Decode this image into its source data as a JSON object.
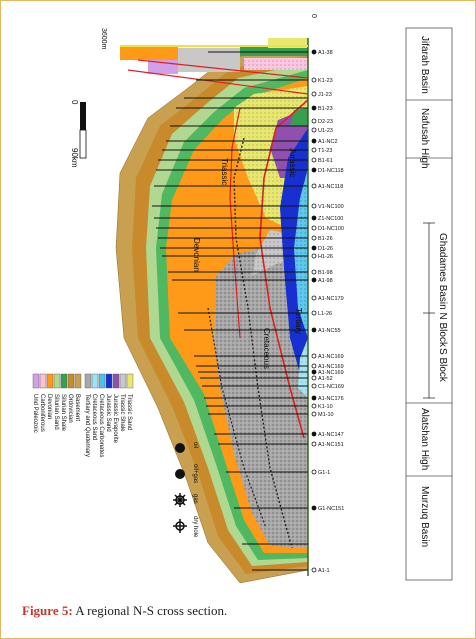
{
  "caption": {
    "label": "Figure 5:",
    "text": "A regional N-S cross section."
  },
  "regions": [
    {
      "name": "Jifarah Basin"
    },
    {
      "name": "Nafusah High"
    },
    {
      "name": "Ghadames Basin N Block"
    },
    {
      "name": "S Block"
    },
    {
      "name": "Alatshan High"
    },
    {
      "name": "Murzuq Basin"
    }
  ],
  "legend": {
    "left_column": [
      {
        "label": "Basement",
        "color": "#c8a050"
      },
      {
        "label": "Ordovician",
        "color": "#c88a2a"
      },
      {
        "label": "Silurian Shale",
        "color": "#36a050"
      },
      {
        "label": "Silurian Sand",
        "color": "#b0d890"
      },
      {
        "label": "Devonian",
        "color": "#ff9a18"
      },
      {
        "label": "Carboniferous",
        "color": "#f8c0d0"
      },
      {
        "label": "Und Paleozoic",
        "color": "#d0a0e8"
      }
    ],
    "right_column": [
      {
        "label": "Triassic Sand",
        "color": "#e8e870"
      },
      {
        "label": "Triassic Shale",
        "color": "#c8c8c8"
      },
      {
        "label": "Jurassic Evaporite",
        "color": "#9050b0"
      },
      {
        "label": "Jurassic Sand",
        "color": "#1830d0"
      },
      {
        "label": "Cretaceous Carbonates",
        "color": "#50c0e8"
      },
      {
        "label": "Cretaceous Sand",
        "color": "#a0e0f0"
      },
      {
        "label": "Tertiary and Quaternary",
        "color": "#a8a8a8"
      }
    ],
    "symbols": [
      "oil",
      "oil+gas",
      "gas",
      "dry hole"
    ]
  },
  "scale": {
    "top": "0",
    "bottom": "90km"
  },
  "depth": {
    "top": "0",
    "bottom": "3600m"
  },
  "well_labels": [
    "A1-38",
    "K1-23",
    "J1-23",
    "B1-23",
    "D2-23",
    "U1-23",
    "A1-NC2",
    "T1-23",
    "B1-61",
    "D1-NC118",
    "A1-NC118",
    "V1-NC100",
    "Z1-NC100",
    "D1-NC100",
    "B1-26",
    "D1-26",
    "H1-26",
    "B1-98",
    "A1-98",
    "A1-NC179",
    "L1-26",
    "A1-NC55",
    "A1-NC169",
    "A1-NC169",
    "A1-NC169",
    "A1-52",
    "C1-NC169",
    "A1-NC176",
    "K1-10",
    "M1-10",
    "A1-NC147",
    "A1-NC151",
    "G1-1",
    "G1-NC151",
    "A1-1"
  ],
  "unit_labels": {
    "tertiary": "Tertiary",
    "cretaceous": "Cretaceous",
    "devonian": "Devonian",
    "triassic": "Triassic",
    "jurassic": "Jurassic"
  },
  "colors": {
    "frame": "#e6b85c",
    "caption_label": "#c0392b"
  }
}
